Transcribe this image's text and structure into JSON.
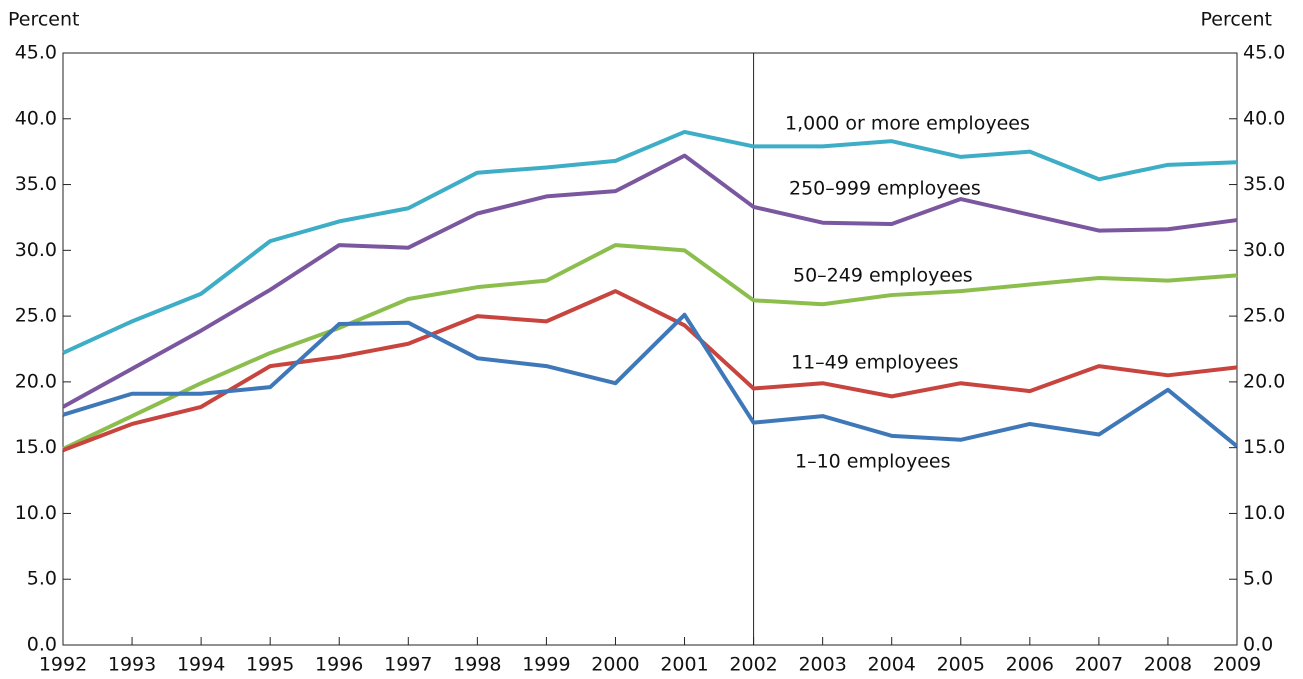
{
  "chart_data": {
    "type": "line",
    "ylabel": "Percent",
    "y2label": "Percent",
    "x": [
      1992,
      1993,
      1994,
      1995,
      1996,
      1997,
      1998,
      1999,
      2000,
      2001,
      2002,
      2003,
      2004,
      2005,
      2006,
      2007,
      2008,
      2009
    ],
    "xlim": [
      1992,
      2009
    ],
    "xticks": [
      1992,
      1993,
      1994,
      1995,
      1996,
      1997,
      1998,
      1999,
      2000,
      2001,
      2002,
      2003,
      2004,
      2005,
      2006,
      2007,
      2008,
      2009
    ],
    "ylim": [
      0,
      45
    ],
    "yticks": [
      {
        "value": 0,
        "label": "0.0"
      },
      {
        "value": 5,
        "label": "5.0"
      },
      {
        "value": 10,
        "label": "10.0"
      },
      {
        "value": 15,
        "label": "15.0"
      },
      {
        "value": 20,
        "label": "20.0"
      },
      {
        "value": 25,
        "label": "25.0"
      },
      {
        "value": 30,
        "label": "30.0"
      },
      {
        "value": 35,
        "label": "35.0"
      },
      {
        "value": 40,
        "label": "40.0"
      },
      {
        "value": 45,
        "label": "45.0"
      }
    ],
    "vline": 2002,
    "series": [
      {
        "name": "1,000 or more employees",
        "color": "#3eadc6",
        "values": [
          22.2,
          24.6,
          26.7,
          30.7,
          32.2,
          33.2,
          35.9,
          36.3,
          36.8,
          39.0,
          37.9,
          37.9,
          38.3,
          37.1,
          37.5,
          35.4,
          36.5,
          36.7
        ]
      },
      {
        "name": "250–999 employees",
        "color": "#7b579f",
        "values": [
          18.1,
          21.0,
          23.9,
          27.0,
          30.4,
          30.2,
          32.8,
          34.1,
          34.5,
          37.2,
          33.3,
          32.1,
          32.0,
          33.9,
          32.7,
          31.5,
          31.6,
          32.3
        ]
      },
      {
        "name": "50–249 employees",
        "color": "#8cbe4e",
        "values": [
          14.9,
          17.4,
          19.9,
          22.2,
          24.1,
          26.3,
          27.2,
          27.7,
          30.4,
          30.0,
          26.2,
          25.9,
          26.6,
          26.9,
          27.4,
          27.9,
          27.7,
          28.1
        ]
      },
      {
        "name": "11–49 employees",
        "color": "#c8443e",
        "values": [
          14.8,
          16.8,
          18.1,
          21.2,
          21.9,
          22.9,
          25.0,
          24.6,
          26.9,
          24.3,
          19.5,
          19.9,
          18.9,
          19.9,
          19.3,
          21.2,
          20.5,
          21.1
        ]
      },
      {
        "name": "1–10 employees",
        "color": "#3f78b9",
        "values": [
          17.5,
          19.1,
          19.1,
          19.6,
          24.4,
          24.5,
          21.8,
          21.2,
          19.9,
          25.1,
          16.9,
          17.4,
          15.9,
          15.6,
          16.8,
          16.0,
          19.4,
          15.1
        ]
      }
    ]
  }
}
